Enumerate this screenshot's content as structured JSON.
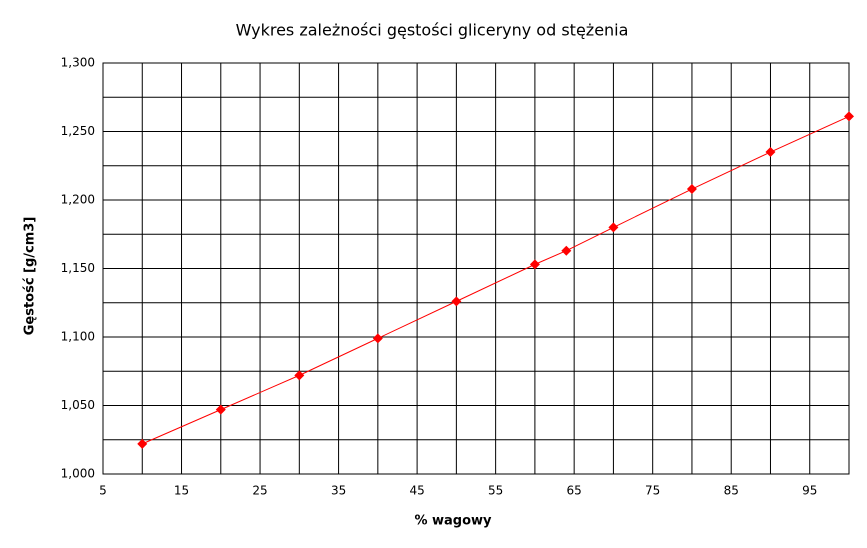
{
  "chart_data": {
    "type": "line",
    "title": "Wykres zależności gęstości gliceryny od stężenia",
    "x_label": "% wagowy",
    "y_label": "Gęstość [g/cm3]",
    "x": [
      10,
      20,
      30,
      40,
      50,
      60,
      64,
      70,
      80,
      90,
      100
    ],
    "series": [
      {
        "name": "Gęstość",
        "color": "#ff0000",
        "values": [
          1.022,
          1.047,
          1.072,
          1.099,
          1.126,
          1.153,
          1.163,
          1.18,
          1.208,
          1.235,
          1.261
        ]
      }
    ],
    "xlim": [
      5,
      100
    ],
    "ylim": [
      1.0,
      1.3
    ],
    "xticks": [
      5,
      15,
      25,
      35,
      45,
      55,
      65,
      75,
      85,
      95
    ],
    "x_minor_ticks": [
      10,
      20,
      30,
      40,
      50,
      60,
      70,
      80,
      90,
      100
    ],
    "yticks": [
      {
        "value": 1.0,
        "label": "1,000"
      },
      {
        "value": 1.05,
        "label": "1,050"
      },
      {
        "value": 1.1,
        "label": "1,100"
      },
      {
        "value": 1.15,
        "label": "1,150"
      },
      {
        "value": 1.2,
        "label": "1,200"
      },
      {
        "value": 1.25,
        "label": "1,250"
      },
      {
        "value": 1.3,
        "label": "1,300"
      }
    ],
    "y_minor_ticks": [
      1.025,
      1.075,
      1.125,
      1.175,
      1.225,
      1.275
    ],
    "grid": true
  }
}
